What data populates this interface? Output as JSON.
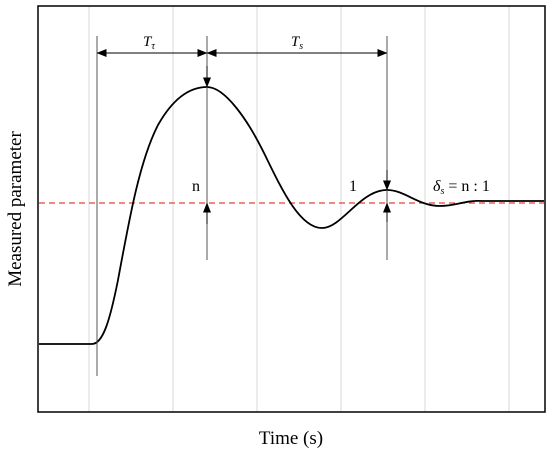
{
  "chart_data": {
    "type": "line",
    "title": "",
    "xlabel": "Time (s)",
    "ylabel": "Measured parameter",
    "xticks_labeled": false,
    "yticks_labeled": false,
    "grid": "vertical",
    "steady_state_line": {
      "style": "dashed",
      "color": "#e8413b"
    },
    "annotations": {
      "rise_time_label": "T",
      "rise_time_subscript": "τ",
      "settling_time_label": "T",
      "settling_time_subscript": "s",
      "first_peak_label": "n",
      "second_peak_label": "1",
      "decay_ratio_symbol": "δ",
      "decay_ratio_subscript": "s",
      "decay_ratio_rhs": "= n : 1"
    },
    "colors": {
      "curve": "#000000",
      "axes": "#000000",
      "grid": "#d9d9d9",
      "setpoint": "#e8413b"
    }
  }
}
